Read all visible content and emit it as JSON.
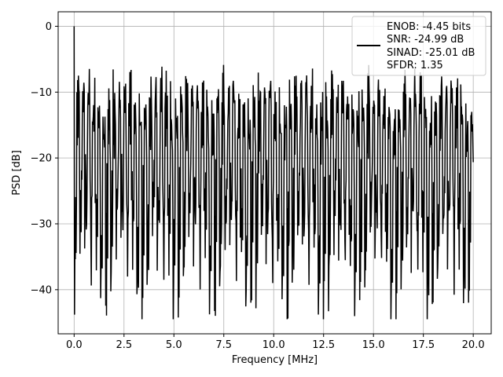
{
  "chart_data": {
    "type": "line",
    "title": "",
    "xlabel": "Frequency [MHz]",
    "ylabel": "PSD [dB]",
    "xlim": [
      -0.8,
      20.9
    ],
    "ylim": [
      -46.7,
      2.2
    ],
    "x_ticks": [
      0.0,
      2.5,
      5.0,
      7.5,
      10.0,
      12.5,
      15.0,
      17.5,
      20.0
    ],
    "x_tick_labels": [
      "0.0",
      "2.5",
      "5.0",
      "7.5",
      "10.0",
      "12.5",
      "15.0",
      "17.5",
      "20.0"
    ],
    "y_ticks": [
      0,
      -10,
      -20,
      -30,
      -40
    ],
    "y_tick_labels": [
      "0",
      "−10",
      "−20",
      "−30",
      "−40"
    ],
    "grid": true,
    "legend_position": "top-right",
    "series": [
      {
        "name": "",
        "color": "#000000",
        "x_range": [
          0.0,
          20.0
        ],
        "num_points": 1024,
        "values": [
          0.0,
          -20.4,
          -23.1,
          -12.6,
          -31.4,
          -18.7,
          -9.0,
          -34.6,
          -14.2,
          -26.9,
          -10.5,
          -22.3,
          -17.8,
          -29.4,
          -13.1,
          -40.8,
          -16.5,
          -24.7,
          -11.3,
          -44.2,
          -19.6,
          -27.5,
          -12.9,
          -42.1,
          -15.4,
          -33.8,
          -10.2,
          -25.6,
          -18.1,
          -35.2,
          -11.7,
          -28.3,
          -14.8,
          -30.6,
          -9.7,
          -21.9,
          -16.2,
          -37.4,
          -12.4,
          -26.1,
          -8.9,
          -23.6,
          -15.7,
          -34.1,
          -10.8,
          -29.9,
          -13.6,
          -41.6,
          -17.2,
          -25.3,
          -9.3,
          -31.8,
          -14.1,
          -27.8,
          -11.5,
          -36.5,
          -16.9,
          -24.2,
          -10.1,
          -38.0,
          -13.9,
          -22.7,
          -8.6,
          -30.1,
          -15.2,
          -33.3,
          -12.0,
          -28.6,
          -9.5,
          -24.9,
          -17.5,
          -35.8,
          -11.1,
          -26.4,
          -14.5,
          -32.2,
          -10.4,
          -29.1,
          -13.3,
          -37.9,
          -16.1,
          -23.0,
          -9.1,
          -31.0,
          -12.7,
          -27.2,
          -10.9,
          -25.8,
          -15.9,
          -34.7,
          -11.9,
          -28.0,
          -8.8,
          -22.5
        ]
      }
    ],
    "legend": [
      "ENOB: -4.45 bits",
      "SNR: -24.99 dB",
      "SINAD: -25.01 dB",
      "SFDR: 1.35"
    ]
  }
}
